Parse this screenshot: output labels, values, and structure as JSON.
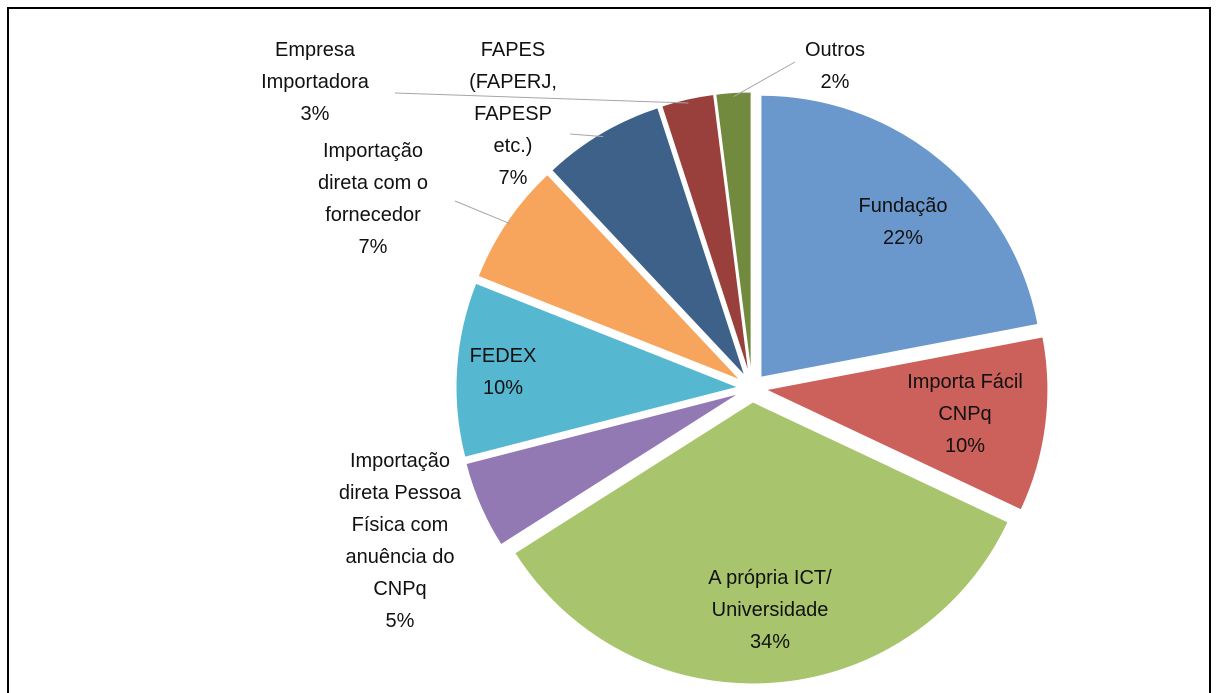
{
  "chart_data": {
    "type": "pie",
    "categories": [
      "Fundação",
      "Importa Fácil\nCNPq",
      "A própria ICT/\nUniversidade",
      "Importação\ndireta Pessoa\nFísica com\nanuência do\nCNPq",
      "FEDEX",
      "Importação\ndireta com o\nfornecedor",
      "FAPES\n(FAPERJ,\nFAPESP\netc.)",
      "Empresa\nImportadora",
      "Outros"
    ],
    "values": [
      22,
      10,
      34,
      5,
      10,
      7,
      7,
      3,
      2
    ],
    "value_labels": [
      "22%",
      "10%",
      "34%",
      "5%",
      "10%",
      "7%",
      "7%",
      "3%",
      "2%"
    ],
    "colors": [
      "#6a98cc",
      "#cc605a",
      "#a8c46c",
      "#9379b4",
      "#55b7d0",
      "#f7a55c",
      "#3e6189",
      "#9a403c",
      "#718a3e"
    ]
  }
}
